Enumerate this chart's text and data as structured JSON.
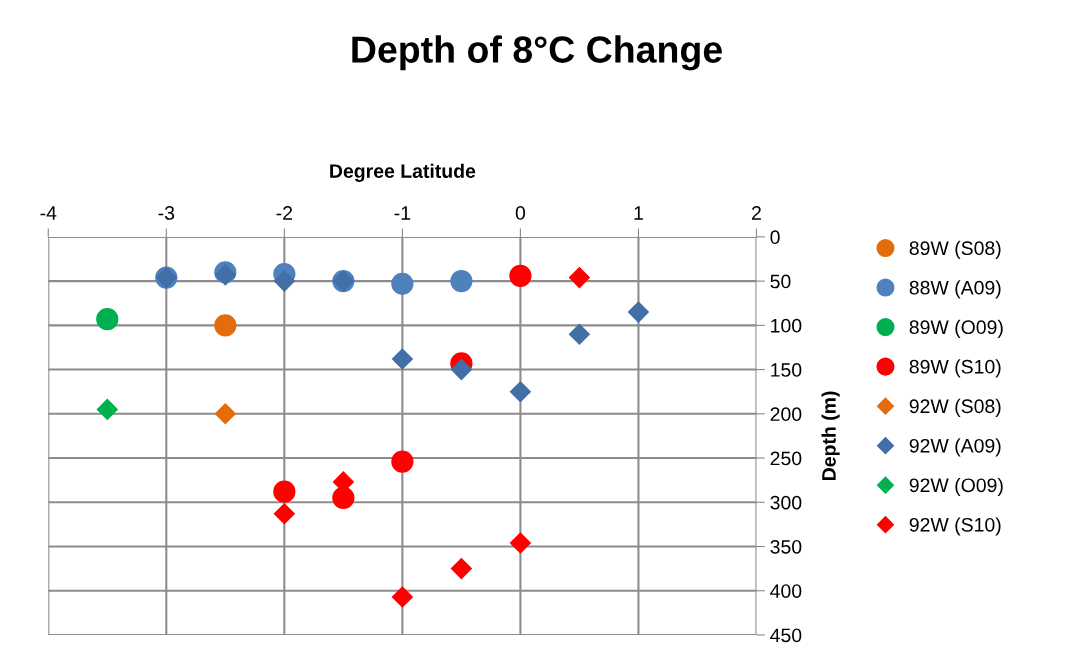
{
  "chart_data": {
    "type": "scatter",
    "title": "Depth of 8°C Change",
    "xlabel": "Degree Latitude",
    "ylabel": "Depth (m)",
    "xlim": [
      -4,
      2
    ],
    "xticks": [
      -4,
      -3,
      -2,
      -1,
      0,
      1,
      2
    ],
    "ylim": [
      450,
      0
    ],
    "yticks": [
      0,
      50,
      100,
      150,
      200,
      250,
      300,
      350,
      400,
      450
    ],
    "grid": true,
    "legend": "right",
    "series": [
      {
        "name": "89W (S08)",
        "color": "#e46c0a",
        "marker": "circle",
        "x": [
          -2.5
        ],
        "values": [
          100
        ]
      },
      {
        "name": "88W (A09)",
        "color": "#4f81bd",
        "marker": "circle",
        "x": [
          -3,
          -2.5,
          -2,
          -1.5,
          -1,
          -0.5
        ],
        "values": [
          46,
          40,
          42,
          50,
          53,
          50
        ]
      },
      {
        "name": "89W (O09)",
        "color": "#00b050",
        "marker": "circle",
        "x": [
          -3.5
        ],
        "values": [
          93
        ]
      },
      {
        "name": "89W (S10)",
        "color": "#ff0000",
        "marker": "circle",
        "x": [
          0,
          -0.5,
          -1,
          -2,
          -1.5
        ],
        "values": [
          44,
          143,
          254,
          288,
          295
        ]
      },
      {
        "name": "92W (S08)",
        "color": "#e46c0a",
        "marker": "diamond",
        "x": [
          -2.5
        ],
        "values": [
          200
        ]
      },
      {
        "name": "92W (A09)",
        "color": "#426fa5",
        "marker": "diamond",
        "x": [
          -3,
          -2.5,
          -2,
          -1.5,
          -1,
          -0.5,
          0,
          0.5,
          1
        ],
        "values": [
          46,
          43,
          50,
          50,
          138,
          150,
          175,
          110,
          85
        ]
      },
      {
        "name": "92W (O09)",
        "color": "#00b050",
        "marker": "diamond",
        "x": [
          -3.5
        ],
        "values": [
          195
        ]
      },
      {
        "name": "92W (S10)",
        "color": "#ff0000",
        "marker": "diamond",
        "x": [
          0.5,
          -1.5,
          -2,
          0,
          -0.5,
          -1
        ],
        "values": [
          46,
          277,
          313,
          346,
          375,
          407
        ]
      }
    ]
  }
}
